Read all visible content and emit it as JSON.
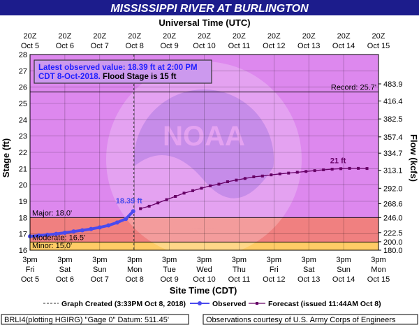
{
  "title": "MISSISSIPPI RIVER AT BURLINGTON",
  "top_axis_title": "Universal Time (UTC)",
  "bottom_axis_title": "Site Time (CDT)",
  "colors": {
    "header_bg": "#1c1c8c",
    "plot_bg": "#dd88ee",
    "major_band": "#f08080",
    "moderate_band": "#ff9e9e",
    "minor_band": "#ffcc66",
    "observed": "#4a4aee",
    "forecast": "#660066"
  },
  "top_ticks": [
    {
      "time": "20Z",
      "date": "Oct 5"
    },
    {
      "time": "20Z",
      "date": "Oct 6"
    },
    {
      "time": "20Z",
      "date": "Oct 7"
    },
    {
      "time": "20Z",
      "date": "Oct 8"
    },
    {
      "time": "20Z",
      "date": "Oct 9"
    },
    {
      "time": "20Z",
      "date": "Oct 10"
    },
    {
      "time": "20Z",
      "date": "Oct 11"
    },
    {
      "time": "20Z",
      "date": "Oct 12"
    },
    {
      "time": "20Z",
      "date": "Oct 13"
    },
    {
      "time": "20Z",
      "date": "Oct 14"
    },
    {
      "time": "20Z",
      "date": "Oct 15"
    }
  ],
  "bottom_ticks": [
    {
      "time": "3pm",
      "day": "Fri",
      "date": "Oct 5"
    },
    {
      "time": "3pm",
      "day": "Sat",
      "date": "Oct 6"
    },
    {
      "time": "3pm",
      "day": "Sun",
      "date": "Oct 7"
    },
    {
      "time": "3pm",
      "day": "Mon",
      "date": "Oct 8"
    },
    {
      "time": "3pm",
      "day": "Tue",
      "date": "Oct 9"
    },
    {
      "time": "3pm",
      "day": "Wed",
      "date": "Oct 10"
    },
    {
      "time": "3pm",
      "day": "Thu",
      "date": "Oct 11"
    },
    {
      "time": "3pm",
      "day": "Fri",
      "date": "Oct 12"
    },
    {
      "time": "3pm",
      "day": "Sat",
      "date": "Oct 13"
    },
    {
      "time": "3pm",
      "day": "Sun",
      "date": "Oct 14"
    },
    {
      "time": "3pm",
      "day": "Mon",
      "date": "Oct 15"
    }
  ],
  "info_box": {
    "line1": "Latest observed value: 18.39 ft at 2:00 PM",
    "line2_prefix": "CDT 8-Oct-2018.",
    "line2_suffix": " Flood Stage is 15 ft"
  },
  "legend": {
    "created": "Graph Created (3:33PM Oct 8, 2018)",
    "observed": "Observed",
    "forecast": "Forecast (issued 11:44AM Oct 8)"
  },
  "footer": {
    "left": "BRLI4(plotting HGIRG) \"Gage 0\" Datum: 511.45'",
    "right": "Observations courtesy of U.S. Army Corps of Engineers"
  },
  "chart_data": {
    "type": "line",
    "ylabel": "Stage (ft)",
    "y2label": "Flow (kcfs)",
    "ylim": [
      16,
      28
    ],
    "x_unit": "days after Oct 5 3pm CDT",
    "xlim": [
      0,
      10
    ],
    "y_ticks": [
      16,
      17,
      18,
      19,
      20,
      21,
      22,
      23,
      24,
      25,
      26,
      27,
      28
    ],
    "flow_ticks": [
      {
        "stage": 16.0,
        "label": "180.0"
      },
      {
        "stage": 16.52,
        "label": "200.0"
      },
      {
        "stage": 17.08,
        "label": "222.5"
      },
      {
        "stage": 18.0,
        "label": "246.0"
      },
      {
        "stage": 18.85,
        "label": "268.6"
      },
      {
        "stage": 19.8,
        "label": "292.0"
      },
      {
        "stage": 20.9,
        "label": "313.1"
      },
      {
        "stage": 21.95,
        "label": "334.7"
      },
      {
        "stage": 22.95,
        "label": "357.4"
      },
      {
        "stage": 24.05,
        "label": "382.5"
      },
      {
        "stage": 25.15,
        "label": "416.4"
      },
      {
        "stage": 26.2,
        "label": "483.9"
      }
    ],
    "flood_categories": [
      {
        "name": "Minor",
        "label": "Minor: 15.0'",
        "stage": 15.0
      },
      {
        "name": "Moderate",
        "label": "Moderate: 16.5'",
        "stage": 16.5
      },
      {
        "name": "Major",
        "label": "Major: 18.0'",
        "stage": 18.0
      }
    ],
    "record": {
      "label": "Record: 25.7'",
      "stage": 25.7
    },
    "graph_created_x": 2.98,
    "series": [
      {
        "name": "Observed",
        "points": [
          [
            0.0,
            16.85
          ],
          [
            0.25,
            16.9
          ],
          [
            0.5,
            16.95
          ],
          [
            0.75,
            17.0
          ],
          [
            1.0,
            17.07
          ],
          [
            1.25,
            17.15
          ],
          [
            1.5,
            17.22
          ],
          [
            1.75,
            17.3
          ],
          [
            2.0,
            17.4
          ],
          [
            2.25,
            17.52
          ],
          [
            2.5,
            17.7
          ],
          [
            2.75,
            17.92
          ],
          [
            2.96,
            18.39
          ]
        ],
        "label": "18.39 ft"
      },
      {
        "name": "Forecast",
        "points": [
          [
            3.17,
            18.55
          ],
          [
            3.42,
            18.7
          ],
          [
            3.67,
            18.9
          ],
          [
            3.92,
            19.1
          ],
          [
            4.17,
            19.3
          ],
          [
            4.42,
            19.5
          ],
          [
            4.67,
            19.65
          ],
          [
            4.92,
            19.8
          ],
          [
            5.17,
            19.95
          ],
          [
            5.42,
            20.05
          ],
          [
            5.67,
            20.2
          ],
          [
            5.92,
            20.3
          ],
          [
            6.17,
            20.4
          ],
          [
            6.42,
            20.5
          ],
          [
            6.67,
            20.55
          ],
          [
            6.92,
            20.62
          ],
          [
            7.17,
            20.68
          ],
          [
            7.42,
            20.73
          ],
          [
            7.67,
            20.78
          ],
          [
            7.92,
            20.83
          ],
          [
            8.17,
            20.88
          ],
          [
            8.42,
            20.93
          ],
          [
            8.67,
            20.97
          ],
          [
            8.92,
            21.0
          ],
          [
            9.17,
            21.02
          ],
          [
            9.42,
            21.02
          ],
          [
            9.67,
            21.01
          ]
        ],
        "label": "21 ft"
      }
    ]
  }
}
